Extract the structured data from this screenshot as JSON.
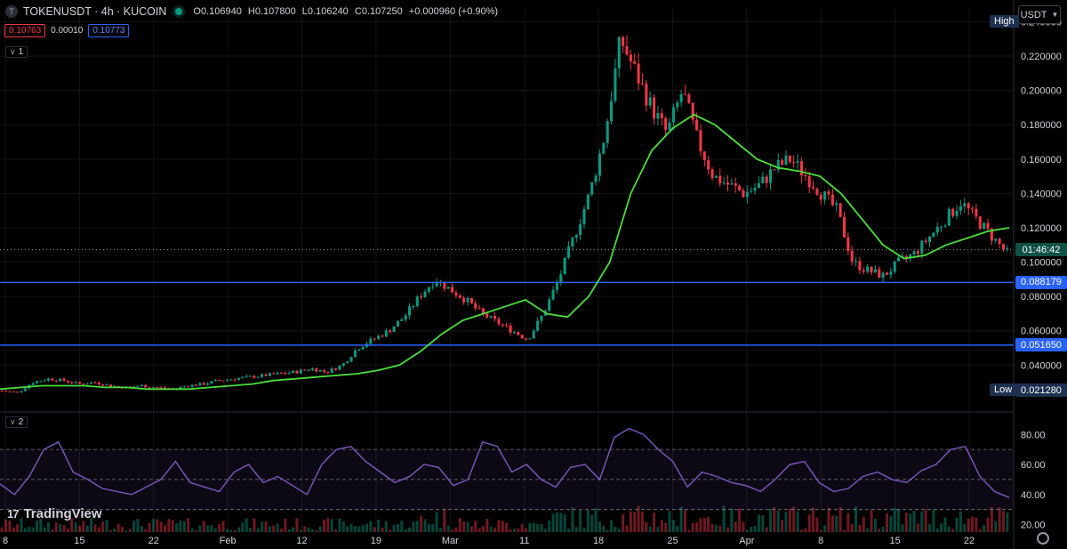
{
  "legend": {
    "symbol_icon": "T",
    "title": "TOKENUSDT · 4h · KUCOIN",
    "open_key": "O",
    "open": "0.106940",
    "high_key": "H",
    "high": "0.107800",
    "low_key": "L",
    "low": "0.106240",
    "close_key": "C",
    "close": "0.107250",
    "change": "+0.000960 (+0.90%)"
  },
  "bidask": {
    "bid": "0.10763",
    "spread": "0.00010",
    "ask": "0.10773"
  },
  "panes": {
    "main_tag": "1",
    "indicator_tag": "2"
  },
  "currency": {
    "label": "USDT"
  },
  "high_label": "High",
  "low_label": "Low",
  "low_value": "0.021280",
  "countdown": "01:46:42",
  "logo": {
    "mark": "17",
    "text": "TradingView"
  },
  "colors": {
    "background": "#000000",
    "up": "#089981",
    "down": "#f23645",
    "ma": "#4ade3a",
    "rsi": "#7e57c2",
    "hline": "#2962ff",
    "countdown_bg": "#0f5145"
  },
  "chart_data": {
    "type": "candlestick",
    "price_axis": {
      "ticks": [
        "0.240000",
        "0.220000",
        "0.200000",
        "0.180000",
        "0.160000",
        "0.140000",
        "0.120000",
        "0.100000",
        "0.080000",
        "0.060000",
        "0.040000"
      ],
      "ylim": [
        0.0127,
        0.2475
      ]
    },
    "time_axis": {
      "labels": [
        "8",
        "15",
        "22",
        "Feb",
        "12",
        "19",
        "Mar",
        "11",
        "18",
        "25",
        "Apr",
        "8",
        "15",
        "22"
      ]
    },
    "price_series": [
      0.025,
      0.024,
      0.03,
      0.032,
      0.031,
      0.029,
      0.03,
      0.028,
      0.027,
      0.028,
      0.027,
      0.026,
      0.028,
      0.029,
      0.031,
      0.032,
      0.033,
      0.034,
      0.035,
      0.036,
      0.038,
      0.036,
      0.04,
      0.05,
      0.055,
      0.06,
      0.068,
      0.08,
      0.09,
      0.084,
      0.078,
      0.07,
      0.065,
      0.06,
      0.055,
      0.07,
      0.09,
      0.115,
      0.14,
      0.175,
      0.23,
      0.21,
      0.19,
      0.175,
      0.2,
      0.17,
      0.15,
      0.145,
      0.14,
      0.145,
      0.155,
      0.16,
      0.15,
      0.14,
      0.13,
      0.1,
      0.095,
      0.092,
      0.1,
      0.105,
      0.115,
      0.125,
      0.135,
      0.125,
      0.115,
      0.105
    ],
    "moving_average": [
      0.026,
      0.027,
      0.028,
      0.028,
      0.028,
      0.027,
      0.027,
      0.026,
      0.026,
      0.026,
      0.027,
      0.028,
      0.029,
      0.031,
      0.032,
      0.033,
      0.034,
      0.035,
      0.037,
      0.04,
      0.048,
      0.058,
      0.066,
      0.07,
      0.074,
      0.078,
      0.07,
      0.068,
      0.08,
      0.1,
      0.14,
      0.165,
      0.178,
      0.186,
      0.18,
      0.17,
      0.16,
      0.155,
      0.153,
      0.15,
      0.14,
      0.125,
      0.11,
      0.102,
      0.104,
      0.11,
      0.114,
      0.118,
      0.12
    ],
    "horizontal_lines": [
      {
        "value": 0.088179,
        "label": "0.088179"
      },
      {
        "value": 0.05165,
        "label": "0.051650"
      }
    ],
    "last_price": 0.10725,
    "rsi": {
      "ticks": [
        "80.00",
        "60.00",
        "40.00",
        "20.00"
      ],
      "ylim": [
        15,
        92
      ],
      "levels": [
        70,
        50,
        30
      ],
      "values": [
        47,
        40,
        52,
        70,
        75,
        55,
        50,
        44,
        42,
        40,
        45,
        50,
        62,
        48,
        45,
        42,
        55,
        60,
        48,
        52,
        46,
        40,
        60,
        70,
        72,
        62,
        55,
        48,
        52,
        60,
        58,
        46,
        50,
        75,
        72,
        55,
        60,
        50,
        45,
        58,
        60,
        50,
        78,
        84,
        80,
        70,
        62,
        45,
        55,
        52,
        48,
        46,
        42,
        50,
        60,
        62,
        48,
        42,
        44,
        52,
        55,
        50,
        48,
        56,
        60,
        70,
        72,
        52,
        42,
        38
      ]
    }
  }
}
